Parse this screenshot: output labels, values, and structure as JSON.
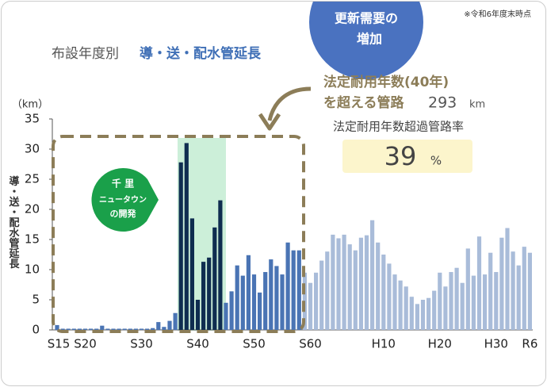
{
  "chart_data": {
    "type": "bar",
    "title": "布設年度別",
    "subtitle": "導・送・配水管延長",
    "note": "※令和6年度末時点",
    "y_label": "導・送・配水管延長",
    "y_unit": "（km）",
    "bubble": [
      "更新需要の",
      "増加"
    ],
    "event_label": [
      "千 里",
      "ニュータウン",
      "の開発"
    ],
    "exceed_label": [
      "法定耐用年数(40年)",
      "を超える管路"
    ],
    "exceed_length": 293,
    "exceed_length_unit": "km",
    "rate_label": "法定耐用年数超過管路率",
    "exceed_rate": 39,
    "exceed_rate_unit": "%",
    "categories": [
      "S15",
      null,
      null,
      null,
      null,
      "S20",
      null,
      null,
      null,
      null,
      null,
      null,
      null,
      null,
      null,
      "S30",
      null,
      null,
      null,
      null,
      null,
      null,
      null,
      null,
      null,
      "S40",
      null,
      null,
      null,
      null,
      null,
      null,
      null,
      null,
      null,
      "S50",
      null,
      null,
      null,
      null,
      null,
      null,
      null,
      null,
      null,
      "S60",
      null,
      null,
      null,
      null,
      null,
      null,
      null,
      null,
      null,
      null,
      null,
      null,
      "H10",
      null,
      null,
      null,
      null,
      null,
      null,
      null,
      null,
      null,
      "H20",
      null,
      null,
      null,
      null,
      null,
      null,
      null,
      null,
      null,
      "H30",
      null,
      null,
      null,
      null,
      null,
      "R6"
    ],
    "values": [
      0.8,
      0.2,
      0.2,
      0.2,
      0.2,
      0.2,
      0.2,
      0.2,
      0.7,
      0.2,
      0.2,
      0.2,
      0.2,
      0.2,
      0.2,
      0.2,
      0.2,
      0.3,
      1.3,
      0.5,
      1.5,
      2.8,
      27.8,
      31,
      18.5,
      5,
      11.3,
      12,
      17,
      21.5,
      4.5,
      6.4,
      10.7,
      9,
      12.4,
      9.2,
      6.2,
      9.6,
      11.7,
      10.6,
      9.2,
      14.5,
      13.2,
      13.2,
      9.5,
      7.8,
      9.5,
      11.5,
      13,
      15.8,
      15.2,
      15.8,
      14.2,
      13.2,
      15.3,
      15.7,
      18.2,
      14.5,
      12.5,
      11,
      9.2,
      8.2,
      7.2,
      5.5,
      4.3,
      5,
      5.3,
      6.5,
      9.5,
      7.2,
      9.6,
      10.3,
      7.8,
      13.5,
      9,
      15.5,
      9.2,
      12.8,
      9.6,
      15.3,
      16.9,
      13,
      10.7,
      13.8,
      12.8
    ],
    "colors": [
      "#4a74b4",
      "#4a74b4",
      "#4a74b4",
      "#4a74b4",
      "#4a74b4",
      "#4a74b4",
      "#4a74b4",
      "#4a74b4",
      "#4a74b4",
      "#4a74b4",
      "#4a74b4",
      "#4a74b4",
      "#4a74b4",
      "#4a74b4",
      "#4a74b4",
      "#4a74b4",
      "#4a74b4",
      "#4a74b4",
      "#4a74b4",
      "#4a74b4",
      "#4a74b4",
      "#4a74b4",
      "#0f2d50",
      "#0f2d50",
      "#0f2d50",
      "#0f2d50",
      "#0f2d50",
      "#0f2d50",
      "#0f2d50",
      "#0f2d50",
      "#4a74b4",
      "#4a74b4",
      "#4a74b4",
      "#4a74b4",
      "#4a74b4",
      "#4a74b4",
      "#4a74b4",
      "#4a74b4",
      "#4a74b4",
      "#4a74b4",
      "#4a74b4",
      "#4a74b4",
      "#4a74b4",
      "#4a74b4",
      "#a9bcd9",
      "#a9bcd9",
      "#a9bcd9",
      "#a9bcd9",
      "#a9bcd9",
      "#a9bcd9",
      "#a9bcd9",
      "#a9bcd9",
      "#a9bcd9",
      "#a9bcd9",
      "#a9bcd9",
      "#a9bcd9",
      "#a9bcd9",
      "#a9bcd9",
      "#a9bcd9",
      "#a9bcd9",
      "#a9bcd9",
      "#a9bcd9",
      "#a9bcd9",
      "#a9bcd9",
      "#a9bcd9",
      "#a9bcd9",
      "#a9bcd9",
      "#a9bcd9",
      "#a9bcd9",
      "#a9bcd9",
      "#a9bcd9",
      "#a9bcd9",
      "#a9bcd9",
      "#a9bcd9",
      "#a9bcd9",
      "#a9bcd9",
      "#a9bcd9",
      "#a9bcd9",
      "#a9bcd9",
      "#a9bcd9",
      "#a9bcd9",
      "#a9bcd9",
      "#a9bcd9",
      "#a9bcd9",
      "#a9bcd9"
    ],
    "ylim": [
      0,
      35
    ],
    "yticks": [
      0,
      5,
      10,
      15,
      20,
      25,
      30,
      35
    ],
    "grid": false
  }
}
